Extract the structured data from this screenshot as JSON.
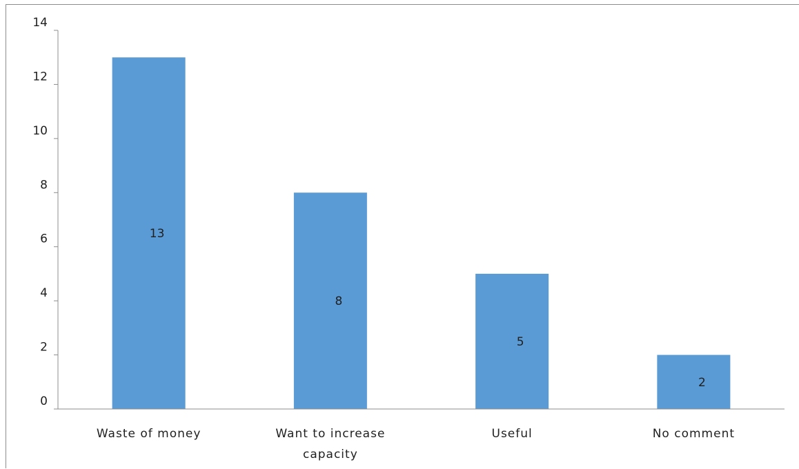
{
  "chart_data": {
    "type": "bar",
    "categories": [
      [
        "Waste of money"
      ],
      [
        "Want to increase",
        "capacity"
      ],
      [
        "Useful"
      ],
      [
        "No comment"
      ]
    ],
    "values": [
      13,
      8,
      5,
      2
    ],
    "data_labels": [
      "13",
      "8",
      "5",
      "2"
    ],
    "title": "",
    "xlabel": "",
    "ylabel": "",
    "ylim": [
      0,
      14
    ],
    "yticks": [
      0,
      2,
      4,
      6,
      8,
      10,
      12,
      14
    ],
    "grid": false,
    "legend": "none",
    "bar_color": "#5b9bd5",
    "axis_color": "#8c8c8c"
  }
}
